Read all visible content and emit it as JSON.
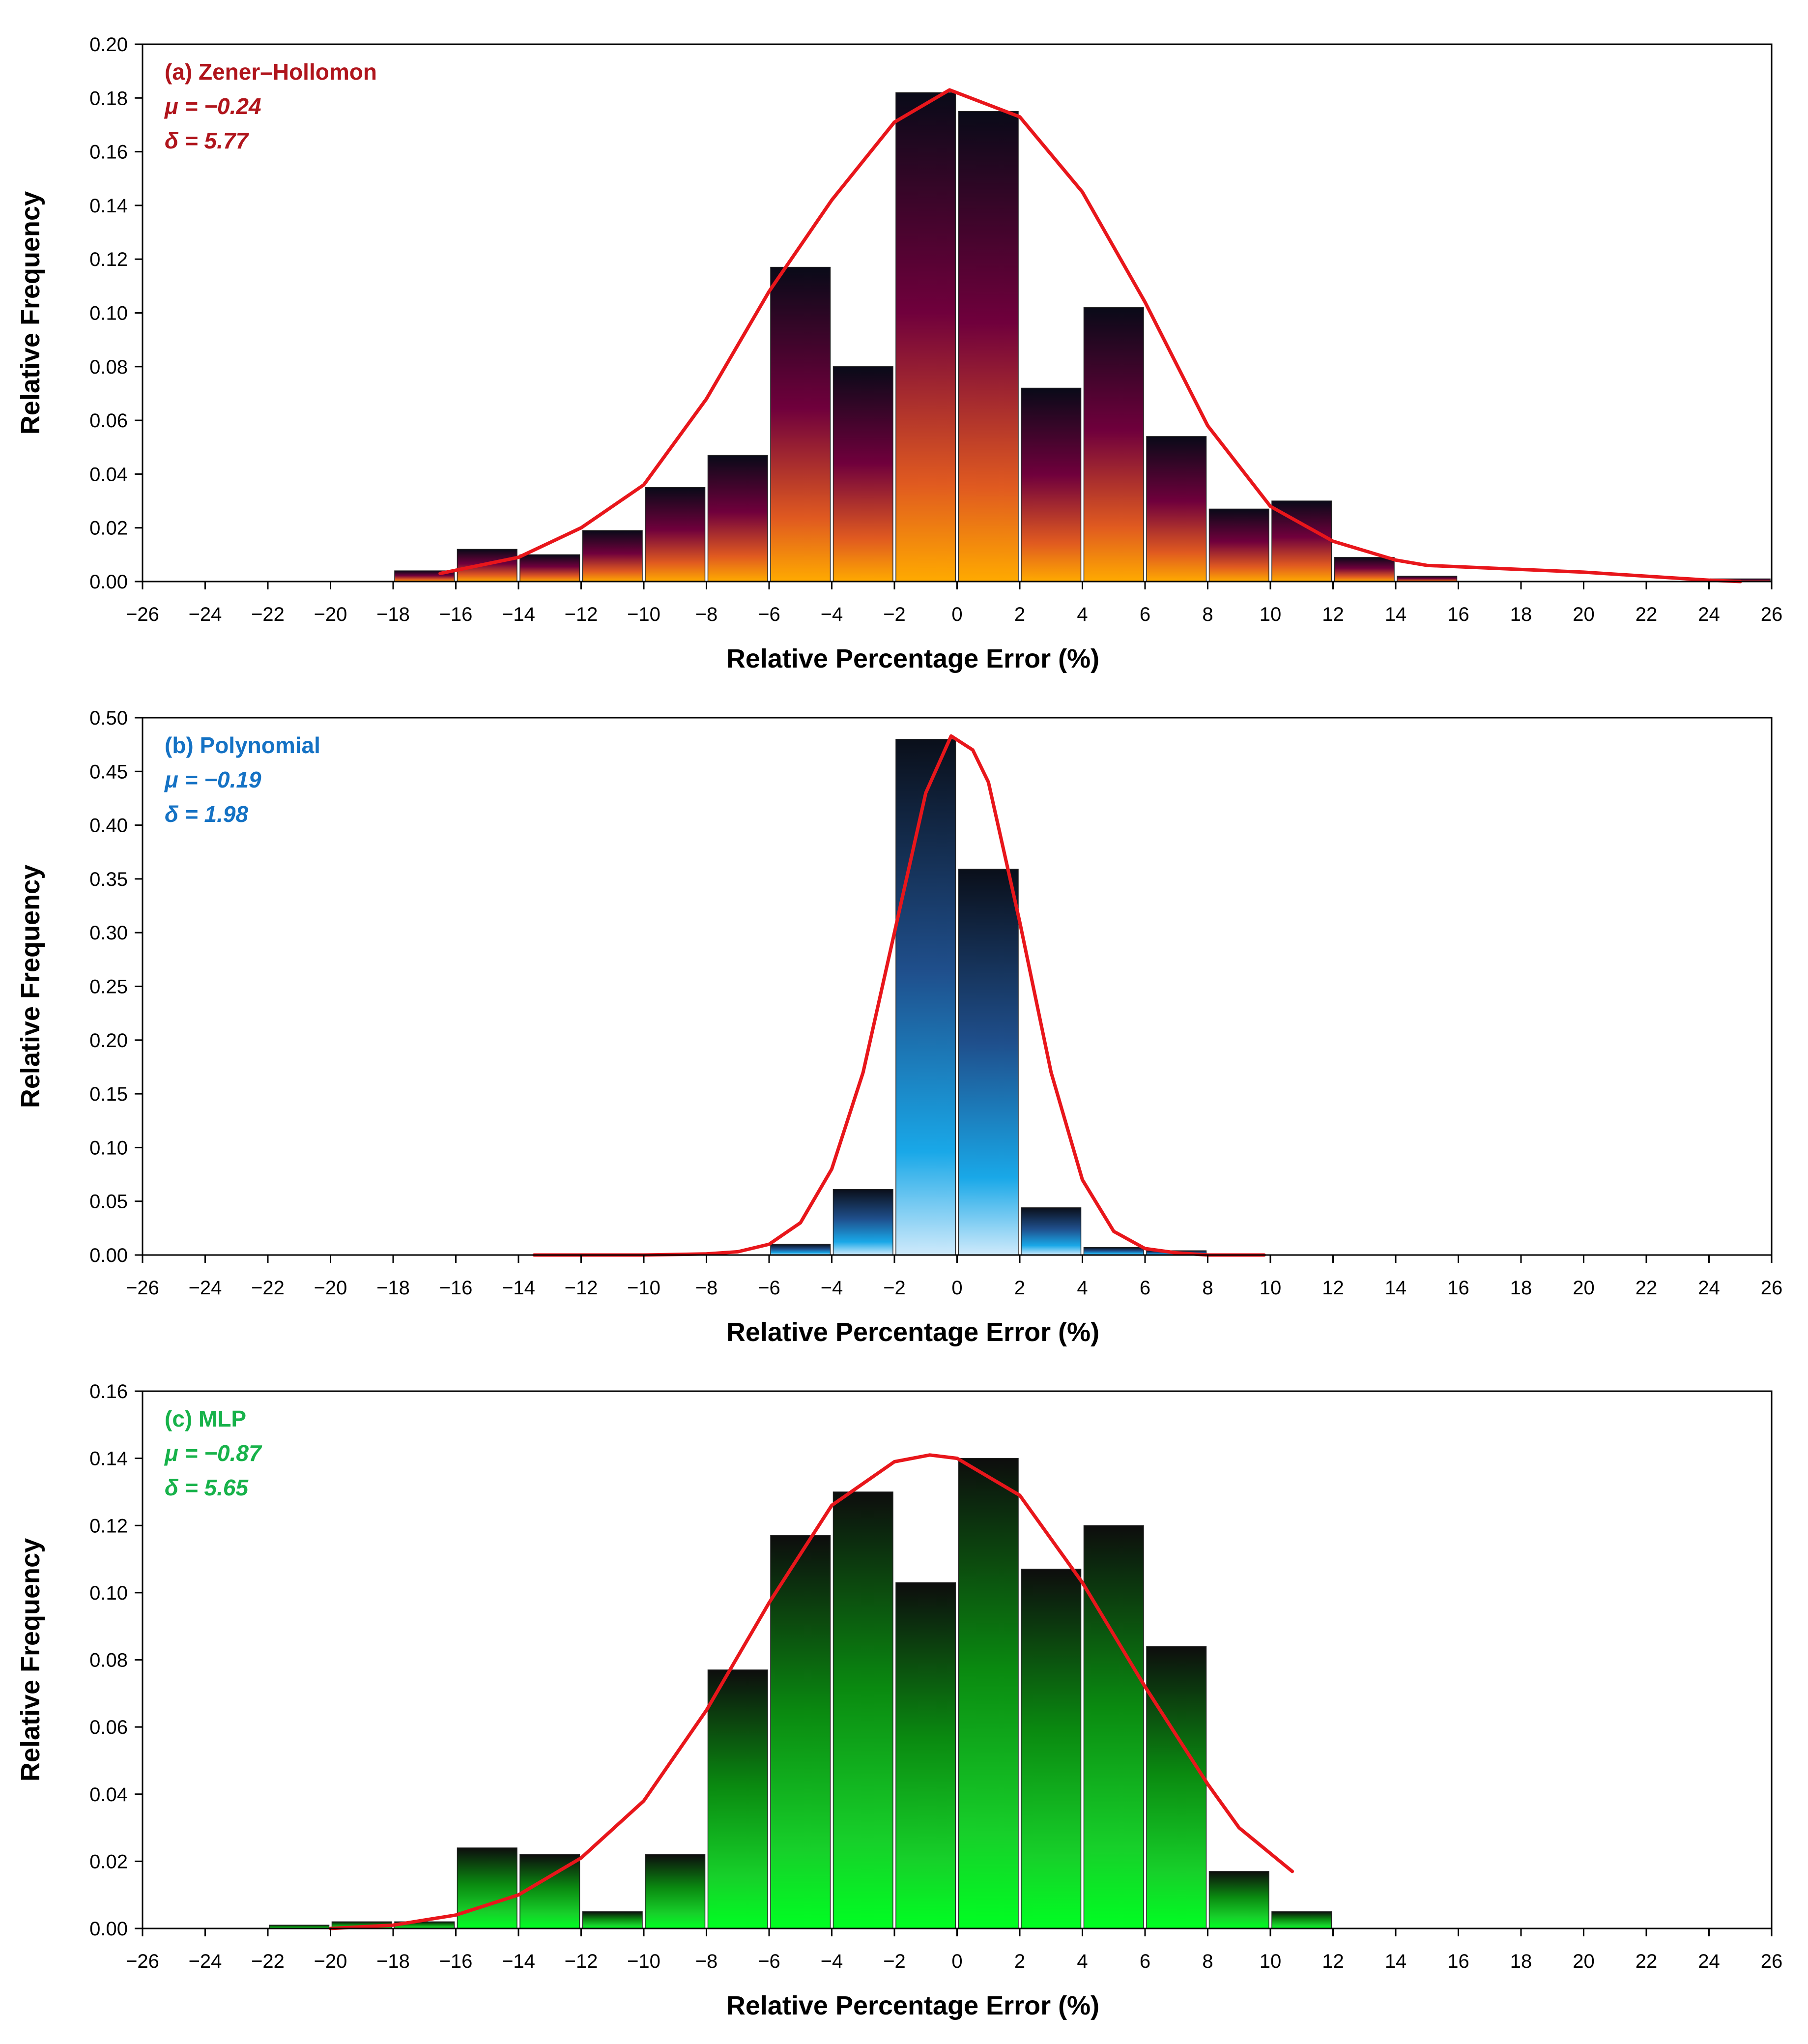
{
  "chart_data": [
    {
      "type": "bar",
      "xlabel": "Relative Percentage Error (%)",
      "ylabel": "Relative Frequency",
      "xlim": [
        -26,
        26
      ],
      "ylim": [
        0,
        0.2
      ],
      "xticks": [
        -26,
        -24,
        -22,
        -20,
        -18,
        -16,
        -14,
        -12,
        -10,
        -8,
        -6,
        -4,
        -2,
        0,
        2,
        4,
        6,
        8,
        10,
        12,
        14,
        16,
        18,
        20,
        22,
        24,
        26
      ],
      "xtick_labels": [
        "−26",
        "−24",
        "−22",
        "−20",
        "−18",
        "−16",
        "−14",
        "−12",
        "−10",
        "−8",
        "−6",
        "−4",
        "−2",
        "0",
        "2",
        "4",
        "6",
        "8",
        "10",
        "12",
        "14",
        "16",
        "18",
        "20",
        "22",
        "24",
        "26"
      ],
      "yticks": [
        0,
        0.02,
        0.04,
        0.06,
        0.08,
        0.1,
        0.12,
        0.14,
        0.16,
        0.18,
        0.2
      ],
      "ytick_labels": [
        "0.00",
        "0.02",
        "0.04",
        "0.06",
        "0.08",
        "0.10",
        "0.12",
        "0.14",
        "0.16",
        "0.18",
        "0.20"
      ],
      "annotation": {
        "label": "(a) Zener–Hollomon",
        "mu": "μ = −0.24",
        "sigma": "δ =   5.77"
      },
      "bins": [
        {
          "x0": -18,
          "x1": -16,
          "value": 0.004
        },
        {
          "x0": -16,
          "x1": -14,
          "value": 0.012
        },
        {
          "x0": -14,
          "x1": -12,
          "value": 0.01
        },
        {
          "x0": -12,
          "x1": -10,
          "value": 0.019
        },
        {
          "x0": -10,
          "x1": -8,
          "value": 0.035
        },
        {
          "x0": -8,
          "x1": -6,
          "value": 0.047
        },
        {
          "x0": -6,
          "x1": -4,
          "value": 0.117
        },
        {
          "x0": -4,
          "x1": -2,
          "value": 0.08
        },
        {
          "x0": -2,
          "x1": 0,
          "value": 0.182
        },
        {
          "x0": 0,
          "x1": 2,
          "value": 0.175
        },
        {
          "x0": 2,
          "x1": 4,
          "value": 0.072
        },
        {
          "x0": 4,
          "x1": 6,
          "value": 0.102
        },
        {
          "x0": 6,
          "x1": 8,
          "value": 0.054
        },
        {
          "x0": 8,
          "x1": 10,
          "value": 0.027
        },
        {
          "x0": 10,
          "x1": 12,
          "value": 0.03
        },
        {
          "x0": 12,
          "x1": 14,
          "value": 0.009
        },
        {
          "x0": 14,
          "x1": 16,
          "value": 0.002
        },
        {
          "x0": 24,
          "x1": 26,
          "value": 0.001
        }
      ],
      "fit_curve": {
        "color": "#e8161b",
        "points": [
          [
            -16.5,
            0.003
          ],
          [
            -14,
            0.009
          ],
          [
            -12,
            0.02
          ],
          [
            -10,
            0.036
          ],
          [
            -8,
            0.068
          ],
          [
            -6,
            0.108
          ],
          [
            -4,
            0.142
          ],
          [
            -2,
            0.171
          ],
          [
            -0.24,
            0.183
          ],
          [
            2,
            0.173
          ],
          [
            4,
            0.145
          ],
          [
            6,
            0.104
          ],
          [
            8,
            0.058
          ],
          [
            10,
            0.028
          ],
          [
            12,
            0.015
          ],
          [
            14,
            0.008
          ],
          [
            15,
            0.006
          ],
          [
            16,
            0.0055
          ],
          [
            18,
            0.0045
          ],
          [
            20,
            0.0035
          ],
          [
            22,
            0.002
          ],
          [
            24,
            0.0005
          ],
          [
            25,
            0.0
          ]
        ]
      },
      "colors": {
        "annotation": "#b0151c",
        "bar_top": "#090a18",
        "bar_mid": "#70003c",
        "bar_low": "#e05a20",
        "bar_bottom": "#ffaa00"
      }
    },
    {
      "type": "bar",
      "xlabel": "Relative Percentage Error (%)",
      "ylabel": "Relative Frequency",
      "xlim": [
        -26,
        26
      ],
      "ylim": [
        0,
        0.5
      ],
      "xticks": [
        -26,
        -24,
        -22,
        -20,
        -18,
        -16,
        -14,
        -12,
        -10,
        -8,
        -6,
        -4,
        -2,
        0,
        2,
        4,
        6,
        8,
        10,
        12,
        14,
        16,
        18,
        20,
        22,
        24,
        26
      ],
      "xtick_labels": [
        "−26",
        "−24",
        "−22",
        "−20",
        "−18",
        "−16",
        "−14",
        "−12",
        "−10",
        "−8",
        "−6",
        "−4",
        "−2",
        "0",
        "2",
        "4",
        "6",
        "8",
        "10",
        "12",
        "14",
        "16",
        "18",
        "20",
        "22",
        "24",
        "26"
      ],
      "yticks": [
        0,
        0.05,
        0.1,
        0.15,
        0.2,
        0.25,
        0.3,
        0.35,
        0.4,
        0.45,
        0.5
      ],
      "ytick_labels": [
        "0.00",
        "0.05",
        "0.10",
        "0.15",
        "0.20",
        "0.25",
        "0.30",
        "0.35",
        "0.40",
        "0.45",
        "0.50"
      ],
      "annotation": {
        "label": "(b) Polynomial",
        "mu": "μ = −0.19",
        "sigma": "δ =   1.98"
      },
      "bins": [
        {
          "x0": -6,
          "x1": -4,
          "value": 0.01
        },
        {
          "x0": -4,
          "x1": -2,
          "value": 0.061
        },
        {
          "x0": -2,
          "x1": 0,
          "value": 0.48
        },
        {
          "x0": 0,
          "x1": 2,
          "value": 0.359
        },
        {
          "x0": 2,
          "x1": 4,
          "value": 0.044
        },
        {
          "x0": 4,
          "x1": 6,
          "value": 0.007
        },
        {
          "x0": 6,
          "x1": 8,
          "value": 0.004
        }
      ],
      "fit_curve": {
        "color": "#e8161b",
        "points": [
          [
            -13.5,
            0
          ],
          [
            -10,
            0
          ],
          [
            -8,
            0.001
          ],
          [
            -7,
            0.003
          ],
          [
            -6,
            0.01
          ],
          [
            -5,
            0.03
          ],
          [
            -4,
            0.08
          ],
          [
            -3,
            0.17
          ],
          [
            -2,
            0.3
          ],
          [
            -1,
            0.43
          ],
          [
            -0.19,
            0.483
          ],
          [
            0.5,
            0.47
          ],
          [
            1,
            0.44
          ],
          [
            2,
            0.31
          ],
          [
            3,
            0.17
          ],
          [
            4,
            0.07
          ],
          [
            5,
            0.022
          ],
          [
            6,
            0.006
          ],
          [
            7,
            0.002
          ],
          [
            8,
            0
          ],
          [
            9.8,
            0
          ]
        ]
      },
      "colors": {
        "annotation": "#1572c4",
        "bar_top": "#0a0f1a",
        "bar_mid": "#1f4f8c",
        "bar_low": "#19a8e8",
        "bar_bottom": "#cfeafb"
      }
    },
    {
      "type": "bar",
      "xlabel": "Relative Percentage Error (%)",
      "ylabel": "Relative Frequency",
      "xlim": [
        -26,
        26
      ],
      "ylim": [
        0,
        0.16
      ],
      "xticks": [
        -26,
        -24,
        -22,
        -20,
        -18,
        -16,
        -14,
        -12,
        -10,
        -8,
        -6,
        -4,
        -2,
        0,
        2,
        4,
        6,
        8,
        10,
        12,
        14,
        16,
        18,
        20,
        22,
        24,
        26
      ],
      "xtick_labels": [
        "−26",
        "−24",
        "−22",
        "−20",
        "−18",
        "−16",
        "−14",
        "−12",
        "−10",
        "−8",
        "−6",
        "−4",
        "−2",
        "0",
        "2",
        "4",
        "6",
        "8",
        "10",
        "12",
        "14",
        "16",
        "18",
        "20",
        "22",
        "24",
        "26"
      ],
      "yticks": [
        0,
        0.02,
        0.04,
        0.06,
        0.08,
        0.1,
        0.12,
        0.14,
        0.16
      ],
      "ytick_labels": [
        "0.00",
        "0.02",
        "0.04",
        "0.06",
        "0.08",
        "0.10",
        "0.12",
        "0.14",
        "0.16"
      ],
      "annotation": {
        "label": "(c) MLP",
        "mu": "μ = −0.87",
        "sigma": "δ =   5.65"
      },
      "bins": [
        {
          "x0": -22,
          "x1": -20,
          "value": 0.001
        },
        {
          "x0": -20,
          "x1": -18,
          "value": 0.002
        },
        {
          "x0": -18,
          "x1": -16,
          "value": 0.002
        },
        {
          "x0": -16,
          "x1": -14,
          "value": 0.024
        },
        {
          "x0": -14,
          "x1": -12,
          "value": 0.022
        },
        {
          "x0": -12,
          "x1": -10,
          "value": 0.005
        },
        {
          "x0": -10,
          "x1": -8,
          "value": 0.022
        },
        {
          "x0": -8,
          "x1": -6,
          "value": 0.077
        },
        {
          "x0": -6,
          "x1": -4,
          "value": 0.117
        },
        {
          "x0": -4,
          "x1": -2,
          "value": 0.13
        },
        {
          "x0": -2,
          "x1": 0,
          "value": 0.103
        },
        {
          "x0": 0,
          "x1": 2,
          "value": 0.14
        },
        {
          "x0": 2,
          "x1": 4,
          "value": 0.107
        },
        {
          "x0": 4,
          "x1": 6,
          "value": 0.12
        },
        {
          "x0": 6,
          "x1": 8,
          "value": 0.084
        },
        {
          "x0": 8,
          "x1": 10,
          "value": 0.017
        },
        {
          "x0": 10,
          "x1": 12,
          "value": 0.005
        }
      ],
      "fit_curve": {
        "color": "#e8161b",
        "points": [
          [
            -20,
            0
          ],
          [
            -18,
            0.001
          ],
          [
            -16,
            0.004
          ],
          [
            -14,
            0.01
          ],
          [
            -12,
            0.021
          ],
          [
            -10,
            0.038
          ],
          [
            -8,
            0.065
          ],
          [
            -6,
            0.097
          ],
          [
            -4,
            0.126
          ],
          [
            -2,
            0.139
          ],
          [
            -0.87,
            0.141
          ],
          [
            0,
            0.14
          ],
          [
            2,
            0.129
          ],
          [
            4,
            0.103
          ],
          [
            6,
            0.072
          ],
          [
            8,
            0.043
          ],
          [
            9,
            0.03
          ],
          [
            10.7,
            0.017
          ]
        ]
      },
      "colors": {
        "annotation": "#17b24a",
        "bar_top": "#0d0d0d",
        "bar_mid": "#0a8a10",
        "bar_low": "#17d02a",
        "bar_bottom": "#00ff22"
      }
    }
  ]
}
